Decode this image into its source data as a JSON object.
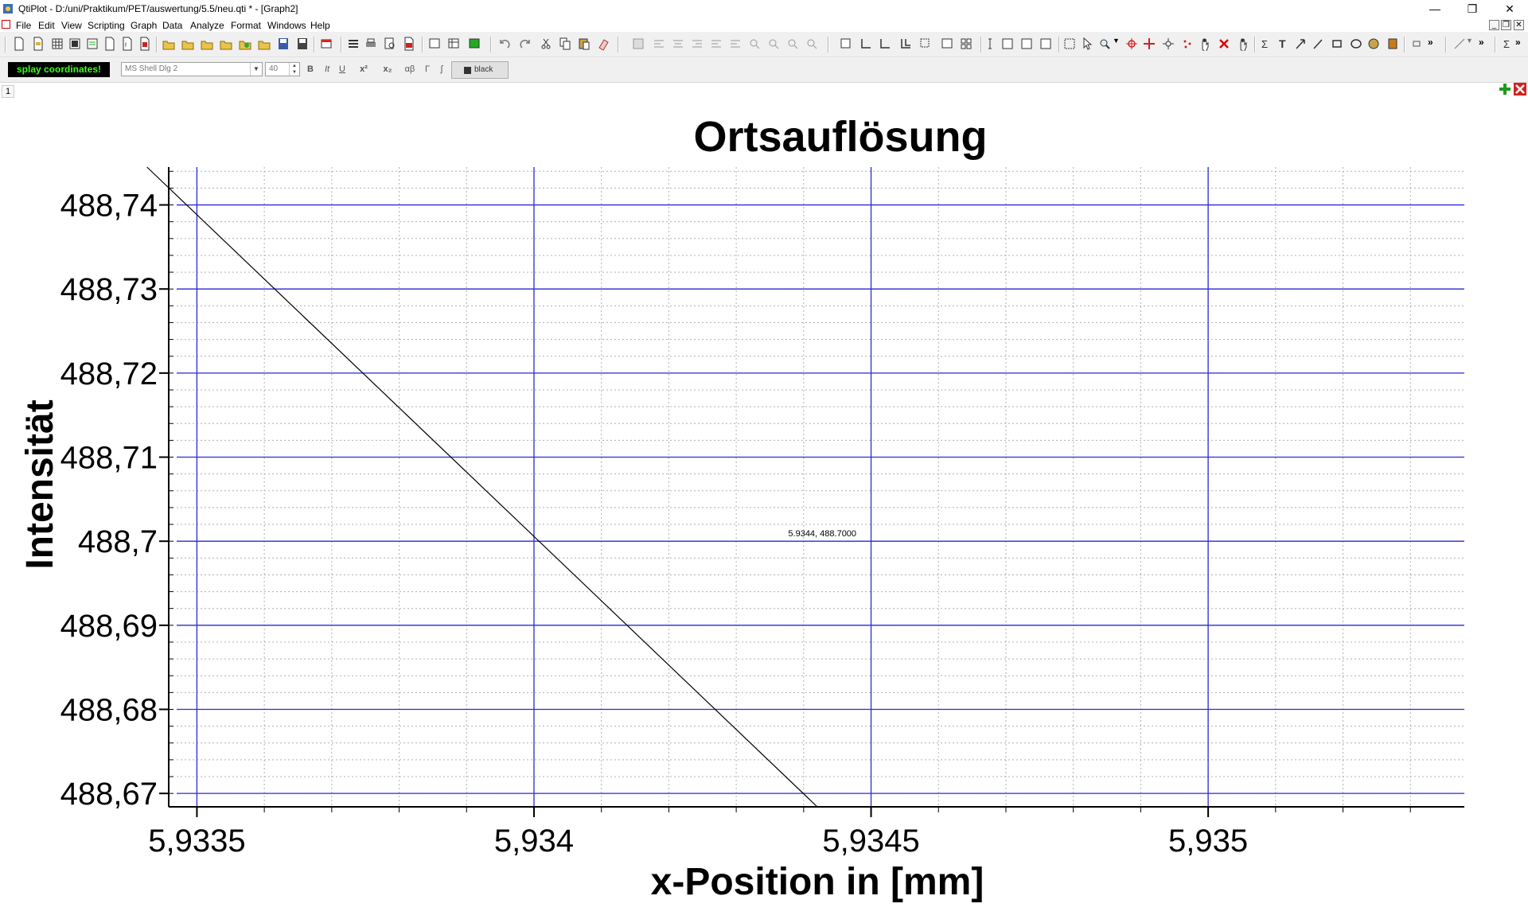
{
  "window": {
    "title": "QtiPlot - D:/uni/Praktikum/PET/auswertung/5.5/neu.qti * - [Graph2]",
    "controls": [
      "minimize",
      "restore",
      "close"
    ]
  },
  "menubar": {
    "items": [
      "File",
      "Edit",
      "View",
      "Scripting",
      "Graph",
      "Data",
      "Analyze",
      "Format",
      "Windows",
      "Help"
    ]
  },
  "format_toolbar": {
    "coords_button": "splay coordinates!",
    "font_family": "MS Shell Dlg 2",
    "font_size": "40",
    "bold": "B",
    "italic": "It",
    "underline": "U",
    "superscript": "x²",
    "subscript": "x₂",
    "greek": "αβ",
    "gamma": "Γ",
    "integral": "∫",
    "color": "black"
  },
  "layer": {
    "tab_label": "1"
  },
  "chart_data": {
    "type": "line",
    "title": "Ortsauflösung",
    "xlabel": "x-Position in [mm]",
    "ylabel": "Intensität",
    "xlim": [
      5.93347,
      5.93538
    ],
    "ylim": [
      488.6685,
      488.7445
    ],
    "x_ticks": [
      5.9335,
      5.934,
      5.9345,
      5.935
    ],
    "x_tick_labels": [
      "5,9335",
      "5,934",
      "5,9345",
      "5,935"
    ],
    "y_ticks": [
      488.67,
      488.68,
      488.69,
      488.7,
      488.71,
      488.72,
      488.73,
      488.74
    ],
    "y_tick_labels": [
      "488,67",
      "488,68",
      "488,69",
      "488,7",
      "488,71",
      "488,72",
      "488,73",
      "488,74"
    ],
    "grid": {
      "major": true,
      "minor": true,
      "major_color": "#2a2ad6",
      "minor_color": "#b0b0b0"
    },
    "series": [
      {
        "values": [
          [
            5.933426,
            488.7445
          ],
          [
            5.934419,
            488.6685
          ]
        ],
        "color": "#000000"
      }
    ],
    "annotations": [
      {
        "text": "5.9344, 488.7000",
        "x": 5.93437,
        "y": 488.7
      }
    ]
  }
}
